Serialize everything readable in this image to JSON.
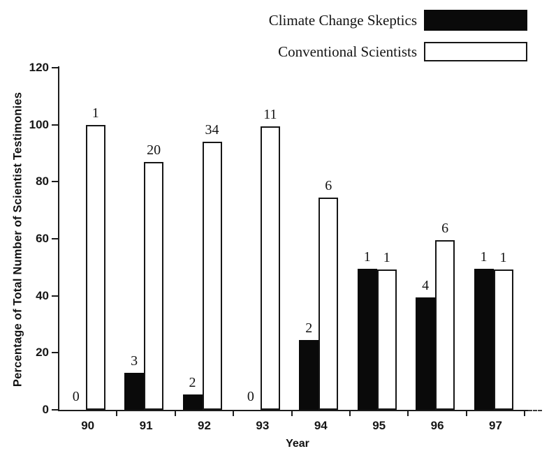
{
  "chart_data": {
    "type": "bar",
    "title": "",
    "xlabel": "Year",
    "ylabel": "Percentage of Total Number of Scientist Testimonies",
    "ylim": [
      0,
      120
    ],
    "yticks": [
      0,
      20,
      40,
      60,
      80,
      100,
      120
    ],
    "categories": [
      "90",
      "91",
      "92",
      "93",
      "94",
      "95",
      "96",
      "97"
    ],
    "grid": false,
    "legend_position": "top-right",
    "bar_label_meaning": "number of testimonies shown above each bar",
    "series": [
      {
        "name": "Climate Change Skeptics",
        "swatch": "black",
        "color": "#0a0a0a",
        "values_percent": [
          0,
          13,
          5.5,
          0,
          24.5,
          49.5,
          39.5,
          49.5
        ],
        "count_labels": [
          "0",
          "3",
          "2",
          "0",
          "2",
          "1",
          "4",
          "1"
        ]
      },
      {
        "name": "Conventional Scientists",
        "swatch": "white",
        "color": "#ffffff",
        "values_percent": [
          100,
          87,
          94,
          99.5,
          74.5,
          49.3,
          59.5,
          49.3
        ],
        "count_labels": [
          "1",
          "20",
          "34",
          "11",
          "6",
          "1",
          "6",
          "1"
        ]
      }
    ]
  },
  "colors": {
    "ink": "#161616",
    "background": "#ffffff"
  }
}
